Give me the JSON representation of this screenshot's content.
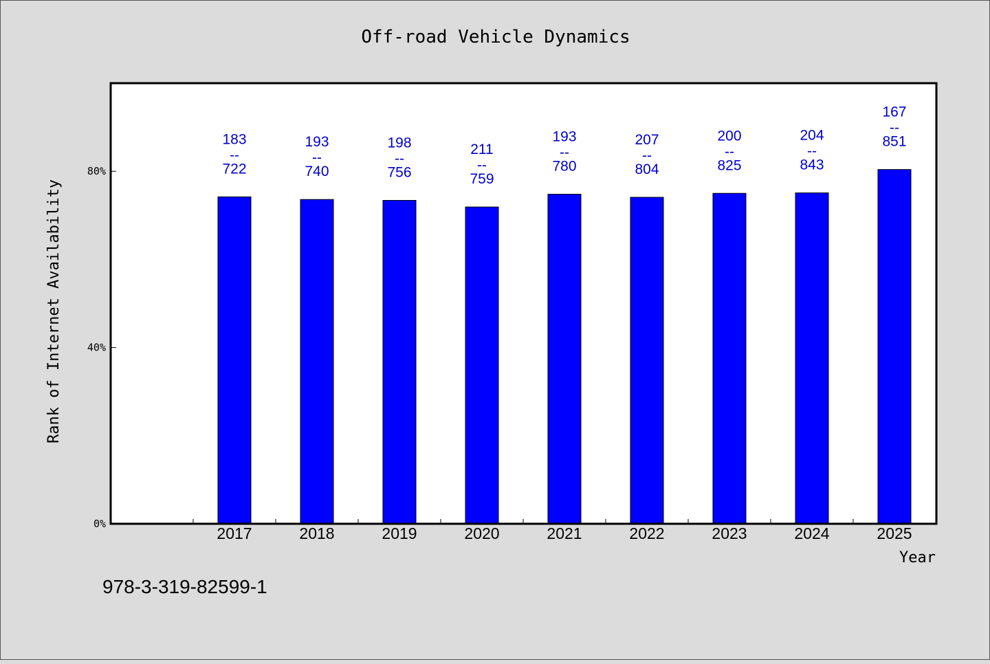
{
  "chart_data": {
    "type": "bar",
    "title": "Off-road Vehicle Dynamics",
    "xlabel": "Year",
    "ylabel": "Rank of Internet Availability",
    "categories": [
      "2017",
      "2018",
      "2019",
      "2020",
      "2021",
      "2022",
      "2023",
      "2024",
      "2025"
    ],
    "values": [
      74.2,
      73.6,
      73.4,
      71.9,
      74.8,
      74.1,
      75.0,
      75.1,
      80.4
    ],
    "point_labels": [
      {
        "top": "183",
        "sep": "--",
        "bottom": "722"
      },
      {
        "top": "193",
        "sep": "--",
        "bottom": "740"
      },
      {
        "top": "198",
        "sep": "--",
        "bottom": "756"
      },
      {
        "top": "211",
        "sep": "--",
        "bottom": "759"
      },
      {
        "top": "193",
        "sep": "--",
        "bottom": "780"
      },
      {
        "top": "207",
        "sep": "--",
        "bottom": "804"
      },
      {
        "top": "200",
        "sep": "--",
        "bottom": "825"
      },
      {
        "top": "204",
        "sep": "--",
        "bottom": "843"
      },
      {
        "top": "167",
        "sep": "--",
        "bottom": "851"
      }
    ],
    "yticks": [
      {
        "value": 0,
        "label": "0%"
      },
      {
        "value": 40,
        "label": "40%"
      },
      {
        "value": 80,
        "label": "80%"
      }
    ],
    "ylim": [
      0,
      100
    ],
    "unit": "%",
    "grid": false,
    "legend": "none",
    "colors": {
      "bar": "#0000ff",
      "label": "#0000cc",
      "axis": "#000000",
      "plot_bg": "#ffffff",
      "page_bg": "#dcdcdc"
    }
  },
  "footer": {
    "isbn": "978-3-319-82599-1"
  }
}
